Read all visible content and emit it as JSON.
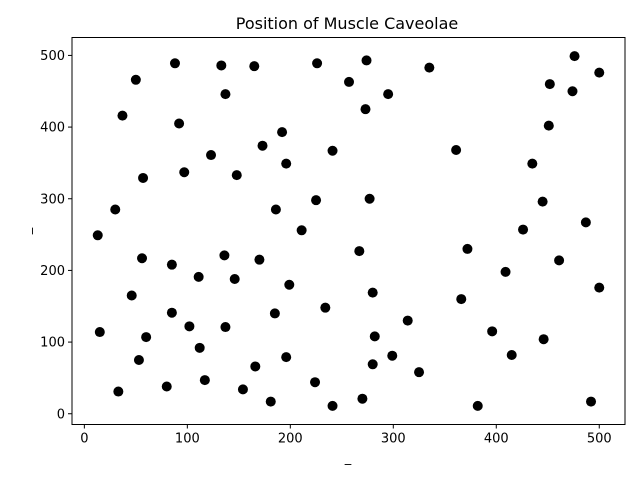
{
  "chart_data": {
    "type": "scatter",
    "title": "Position of Muscle Caveolae",
    "xlabel": "_",
    "ylabel": "_",
    "xlim": [
      -12,
      525
    ],
    "ylim": [
      -15,
      525
    ],
    "xticks": [
      0,
      100,
      200,
      300,
      400,
      500
    ],
    "yticks": [
      0,
      100,
      200,
      300,
      400,
      500
    ],
    "grid": false,
    "marker_color": "#000000",
    "points": [
      {
        "x": 13,
        "y": 249
      },
      {
        "x": 15,
        "y": 114
      },
      {
        "x": 30,
        "y": 285
      },
      {
        "x": 33,
        "y": 31
      },
      {
        "x": 37,
        "y": 416
      },
      {
        "x": 46,
        "y": 165
      },
      {
        "x": 50,
        "y": 466
      },
      {
        "x": 53,
        "y": 75
      },
      {
        "x": 56,
        "y": 217
      },
      {
        "x": 57,
        "y": 329
      },
      {
        "x": 60,
        "y": 107
      },
      {
        "x": 80,
        "y": 38
      },
      {
        "x": 85,
        "y": 141
      },
      {
        "x": 85,
        "y": 208
      },
      {
        "x": 88,
        "y": 489
      },
      {
        "x": 92,
        "y": 405
      },
      {
        "x": 97,
        "y": 337
      },
      {
        "x": 102,
        "y": 122
      },
      {
        "x": 111,
        "y": 191
      },
      {
        "x": 112,
        "y": 92
      },
      {
        "x": 117,
        "y": 47
      },
      {
        "x": 123,
        "y": 361
      },
      {
        "x": 133,
        "y": 486
      },
      {
        "x": 136,
        "y": 221
      },
      {
        "x": 137,
        "y": 121
      },
      {
        "x": 137,
        "y": 446
      },
      {
        "x": 146,
        "y": 188
      },
      {
        "x": 148,
        "y": 333
      },
      {
        "x": 154,
        "y": 34
      },
      {
        "x": 165,
        "y": 485
      },
      {
        "x": 166,
        "y": 66
      },
      {
        "x": 170,
        "y": 215
      },
      {
        "x": 173,
        "y": 374
      },
      {
        "x": 181,
        "y": 17
      },
      {
        "x": 185,
        "y": 140
      },
      {
        "x": 186,
        "y": 285
      },
      {
        "x": 192,
        "y": 393
      },
      {
        "x": 196,
        "y": 79
      },
      {
        "x": 196,
        "y": 349
      },
      {
        "x": 199,
        "y": 180
      },
      {
        "x": 211,
        "y": 256
      },
      {
        "x": 224,
        "y": 44
      },
      {
        "x": 225,
        "y": 298
      },
      {
        "x": 226,
        "y": 489
      },
      {
        "x": 234,
        "y": 148
      },
      {
        "x": 241,
        "y": 11
      },
      {
        "x": 241,
        "y": 367
      },
      {
        "x": 257,
        "y": 463
      },
      {
        "x": 267,
        "y": 227
      },
      {
        "x": 270,
        "y": 21
      },
      {
        "x": 273,
        "y": 425
      },
      {
        "x": 274,
        "y": 493
      },
      {
        "x": 277,
        "y": 300
      },
      {
        "x": 280,
        "y": 69
      },
      {
        "x": 280,
        "y": 169
      },
      {
        "x": 282,
        "y": 108
      },
      {
        "x": 295,
        "y": 446
      },
      {
        "x": 299,
        "y": 81
      },
      {
        "x": 314,
        "y": 130
      },
      {
        "x": 325,
        "y": 58
      },
      {
        "x": 335,
        "y": 483
      },
      {
        "x": 361,
        "y": 368
      },
      {
        "x": 366,
        "y": 160
      },
      {
        "x": 372,
        "y": 230
      },
      {
        "x": 382,
        "y": 11
      },
      {
        "x": 396,
        "y": 115
      },
      {
        "x": 409,
        "y": 198
      },
      {
        "x": 415,
        "y": 82
      },
      {
        "x": 426,
        "y": 257
      },
      {
        "x": 435,
        "y": 349
      },
      {
        "x": 445,
        "y": 296
      },
      {
        "x": 446,
        "y": 104
      },
      {
        "x": 451,
        "y": 402
      },
      {
        "x": 452,
        "y": 460
      },
      {
        "x": 461,
        "y": 214
      },
      {
        "x": 474,
        "y": 450
      },
      {
        "x": 476,
        "y": 499
      },
      {
        "x": 487,
        "y": 267
      },
      {
        "x": 492,
        "y": 17
      },
      {
        "x": 500,
        "y": 176
      },
      {
        "x": 500,
        "y": 476
      }
    ]
  }
}
